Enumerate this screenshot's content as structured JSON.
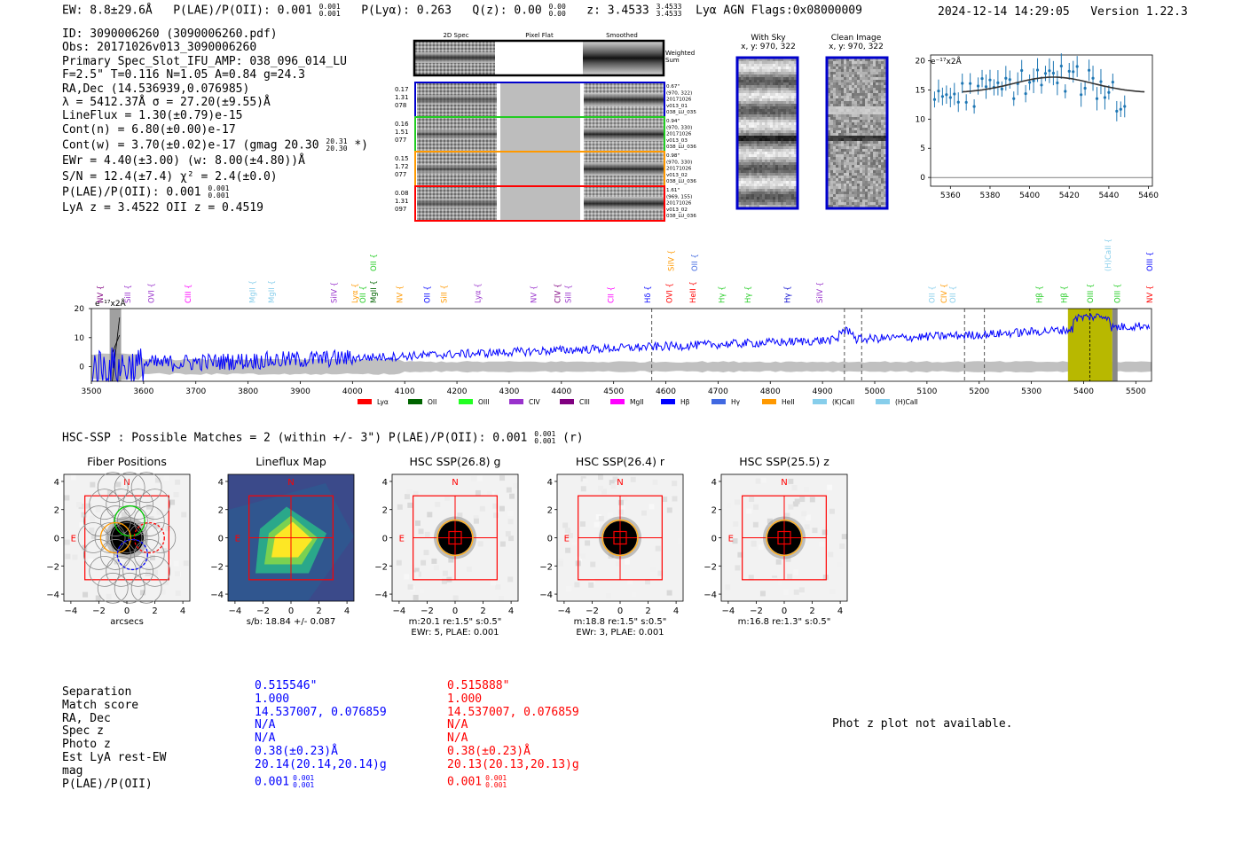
{
  "header": {
    "ew": "EW: 8.8±29.6Å",
    "plae_label": "P(LAE)/P(OII): 0.001",
    "plae_sup": "0.001",
    "plae_sub": "0.001",
    "plya": "P(Lyα): 0.263",
    "qz_label": "Q(z): 0.00",
    "qz_sup": "0.00",
    "qz_sub": "0.00",
    "z_label": "z: 3.4533",
    "z_sup": "3.4533",
    "z_sub": "3.4533",
    "tags": "Lyα  AGN  Flags:0x08000009",
    "datetime": "2024-12-14 14:29:05",
    "version": "Version 1.22.3"
  },
  "info": {
    "id": "ID: 3090006260 (3090006260.pdf)",
    "obs": "Obs: 20171026v013_3090006260",
    "primary": "Primary Spec_Slot_IFU_AMP: 038_096_014_LU",
    "params": "F=2.5\"  T=0.116  N=1.05  A=0.84  g=24.3",
    "radec": "RA,Dec (14.536939,0.076985)",
    "lambda": "λ = 5412.37Å  σ = 27.20(±9.55)Å",
    "lineflux": "LineFlux = 1.30(±0.79)e-15",
    "contn": "Cont(n) = 6.80(±0.00)e-17",
    "contw": "Cont(w) = 3.70(±0.02)e-17 (gmag 20.30",
    "contw_sup": "20.31",
    "contw_sub": "20.30",
    "contw_end": " *)",
    "ewr": "EWr = 4.40(±3.00) (w: 8.00(±4.80))Å",
    "sn": "S/N = 12.4(±7.4)  χ² = 2.4(±0.0)",
    "plae": "P(LAE)/P(OII): 0.001",
    "plae_sup": "0.001",
    "plae_sub": "0.001",
    "lya": "LyA z = 3.4522  OII z = 0.4519"
  },
  "cutouts": {
    "col_headers": [
      "2D Spec",
      "Pixel Flat",
      "Smoothed"
    ],
    "weighted_label": "Weighted Sum",
    "rows": [
      {
        "left": [
          "0.17",
          "1.31",
          "078"
        ],
        "right": [
          "0.67\"",
          "(970, 322)",
          "20171026",
          "v013_01",
          "038_LU_035"
        ],
        "color": "#0000cc"
      },
      {
        "left": [
          "0.16",
          "1.51",
          "077"
        ],
        "right": [
          "0.94\"",
          "(970, 330)",
          "20171026",
          "v013_03",
          "038_LU_036"
        ],
        "color": "#22cc22"
      },
      {
        "left": [
          "0.15",
          "1.72",
          "077"
        ],
        "right": [
          "0.98\"",
          "(970, 330)",
          "20171026",
          "v013_02",
          "038_LU_036"
        ],
        "color": "#ff9900"
      },
      {
        "left": [
          "0.08",
          "1.31",
          "097"
        ],
        "right": [
          "1.61\"",
          "(969, 155)",
          "20171026",
          "v013_02",
          "038_LU_036"
        ],
        "color": "#ff0000"
      }
    ]
  },
  "sky_panels": {
    "with_sky_title": "With Sky",
    "with_sky_coords": "x, y: 970, 322",
    "clean_title": "Clean Image",
    "clean_coords": "x, y: 970, 322"
  },
  "zoom_plot": {
    "ylabel": "e⁻¹⁷x2Å",
    "yticks": [
      "0",
      "5",
      "10",
      "15",
      "20"
    ],
    "xticks": [
      "5360",
      "5380",
      "5400",
      "5420",
      "5440",
      "5460"
    ]
  },
  "full_spectrum": {
    "ylabel": "e⁻¹⁷x2Å",
    "yticks": [
      "0",
      "10",
      "20"
    ],
    "xticks": [
      "3500",
      "3600",
      "3700",
      "3800",
      "3900",
      "4000",
      "4100",
      "4200",
      "4300",
      "4400",
      "4500",
      "4600",
      "4700",
      "4800",
      "4900",
      "5000",
      "5100",
      "5200",
      "5300",
      "5400",
      "5500"
    ],
    "line_labels": [
      {
        "t": "NV",
        "c": "#800080",
        "w": 3522,
        "row": 1
      },
      {
        "t": "SiII",
        "c": "#9932cc",
        "w": 3575,
        "row": 1
      },
      {
        "t": "OVI",
        "c": "#9932cc",
        "w": 3620,
        "row": 1
      },
      {
        "t": "CIII",
        "c": "#ff00ff",
        "w": 3690,
        "row": 1
      },
      {
        "t": "MgII",
        "c": "#87ceeb",
        "w": 3813,
        "row": 1
      },
      {
        "t": "MgII",
        "c": "#87ceeb",
        "w": 3850,
        "row": 1
      },
      {
        "t": "SiIV",
        "c": "#9932cc",
        "w": 3970,
        "row": 1
      },
      {
        "t": "Lyα",
        "c": "#ff9900",
        "w": 4010,
        "row": 1
      },
      {
        "t": "OII",
        "c": "#22cc22",
        "w": 4025,
        "row": 1
      },
      {
        "t": "MgII",
        "c": "#006400",
        "w": 4045,
        "row": 1
      },
      {
        "t": "OII",
        "c": "#22cc22",
        "w": 4045,
        "row": 2
      },
      {
        "t": "NV",
        "c": "#ff9900",
        "w": 4095,
        "row": 1
      },
      {
        "t": "OII",
        "c": "#0000ff",
        "w": 4148,
        "row": 1
      },
      {
        "t": "SiII",
        "c": "#ff9900",
        "w": 4180,
        "row": 1
      },
      {
        "t": "Lyα",
        "c": "#9932cc",
        "w": 4245,
        "row": 1
      },
      {
        "t": "NV",
        "c": "#9932cc",
        "w": 4352,
        "row": 1
      },
      {
        "t": "CIV",
        "c": "#800080",
        "w": 4398,
        "row": 1
      },
      {
        "t": "SiII",
        "c": "#9932cc",
        "w": 4418,
        "row": 1
      },
      {
        "t": "CII",
        "c": "#ff00ff",
        "w": 4500,
        "row": 1
      },
      {
        "t": "Hδ",
        "c": "#0000ff",
        "w": 4570,
        "row": 1
      },
      {
        "t": "OVI",
        "c": "#ff0000",
        "w": 4612,
        "row": 1
      },
      {
        "t": "SiIV",
        "c": "#ff9900",
        "w": 4615,
        "row": 2
      },
      {
        "t": "HeII",
        "c": "#ff0000",
        "w": 4657,
        "row": 1
      },
      {
        "t": "OII",
        "c": "#4169e1",
        "w": 4660,
        "row": 2
      },
      {
        "t": "Hγ",
        "c": "#22cc22",
        "w": 4712,
        "row": 1
      },
      {
        "t": "Hγ",
        "c": "#22cc22",
        "w": 4762,
        "row": 1
      },
      {
        "t": "Hγ",
        "c": "#0000cc",
        "w": 4838,
        "row": 1
      },
      {
        "t": "SiIV",
        "c": "#9932cc",
        "w": 4900,
        "row": 1
      },
      {
        "t": "OII",
        "c": "#87ceeb",
        "w": 5115,
        "row": 1
      },
      {
        "t": "CIV",
        "c": "#ff9900",
        "w": 5138,
        "row": 1
      },
      {
        "t": "OII",
        "c": "#87ceeb",
        "w": 5155,
        "row": 1
      },
      {
        "t": "Hβ",
        "c": "#22cc22",
        "w": 5320,
        "row": 1
      },
      {
        "t": "Hβ",
        "c": "#22cc22",
        "w": 5368,
        "row": 1
      },
      {
        "t": "OIII",
        "c": "#22cc22",
        "w": 5418,
        "row": 1
      },
      {
        "t": "(H)CaII",
        "c": "#87ceeb",
        "w": 5452,
        "row": 2
      },
      {
        "t": "OIII",
        "c": "#22cc22",
        "w": 5470,
        "row": 1
      },
      {
        "t": "NV",
        "c": "#ff0000",
        "w": 5532,
        "row": 1
      },
      {
        "t": "OIII",
        "c": "#0000ff",
        "w": 5532,
        "row": 2
      }
    ],
    "legend": [
      {
        "t": "Lyα",
        "c": "#ff0000"
      },
      {
        "t": "OII",
        "c": "#006400"
      },
      {
        "t": "OIII",
        "c": "#22ff22"
      },
      {
        "t": "CIV",
        "c": "#9932cc"
      },
      {
        "t": "CIII",
        "c": "#800080"
      },
      {
        "t": "MgII",
        "c": "#ff00ff"
      },
      {
        "t": "Hβ",
        "c": "#0000ff"
      },
      {
        "t": "Hγ",
        "c": "#4169e1"
      },
      {
        "t": "HeII",
        "c": "#ff9900"
      },
      {
        "t": "(K)CaII",
        "c": "#87ceeb"
      },
      {
        "t": "(H)CaII",
        "c": "#87ceeb"
      }
    ]
  },
  "hsc": {
    "title": "HSC-SSP : Possible Matches = 2 (within +/- 3\")  P(LAE)/P(OII): 0.001",
    "title_sup": "0.001",
    "title_sub": "0.001",
    "title_end": " (r)"
  },
  "images": [
    {
      "title": "Fiber Positions",
      "cap1": "arcsecs",
      "cap2": ""
    },
    {
      "title": "Lineflux Map",
      "cap1": "s/b: 18.84 +/- 0.087",
      "cap2": ""
    },
    {
      "title": "HSC SSP(26.8) g",
      "cap1": "m:20.1  re:1.5\"  s:0.5\"",
      "cap2": "EWr: 5, PLAE: 0.001"
    },
    {
      "title": "HSC SSP(26.4) r",
      "cap1": "m:18.8  re:1.5\"  s:0.5\"",
      "cap2": "EWr: 3, PLAE: 0.001"
    },
    {
      "title": "HSC SSP(25.5) z",
      "cap1": "m:16.8  re:1.3\"  s:0.5\"",
      "cap2": ""
    }
  ],
  "image_axes": {
    "yticks": [
      "4",
      "2",
      "0",
      "−2",
      "−4"
    ],
    "xticks": [
      "−4",
      "−2",
      "0",
      "2",
      "4"
    ],
    "north": "N",
    "east": "E"
  },
  "matches": {
    "labels": [
      "Separation",
      "Match score",
      "RA, Dec",
      "Spec z",
      "Photo z",
      "Est LyA rest-EW",
      "mag",
      "P(LAE)/P(OII)"
    ],
    "blue": [
      "0.515546\"",
      "1.000",
      "14.537007, 0.076859",
      "N/A",
      "N/A",
      "0.38(±0.23)Å",
      "20.14(20.14,20.14)g",
      "0.001"
    ],
    "blue_plae_sup": "0.001",
    "blue_plae_sub": "0.001",
    "red": [
      "0.515888\"",
      "1.000",
      "14.537007, 0.076859",
      "N/A",
      "N/A",
      "0.38(±0.23)Å",
      "20.13(20.13,20.13)g",
      "0.001"
    ],
    "red_plae_sup": "0.001",
    "red_plae_sub": "0.001",
    "photz_note": "Phot z plot not available."
  },
  "colors": {
    "spectrum": "#0000ff",
    "error_band": "#b0b0b0",
    "highlight": "#b8b800",
    "zoom_points": "#1f77b4",
    "fiber_red": "#ff0000",
    "fiber_green": "#00cc00",
    "fiber_orange": "#ff9900"
  }
}
